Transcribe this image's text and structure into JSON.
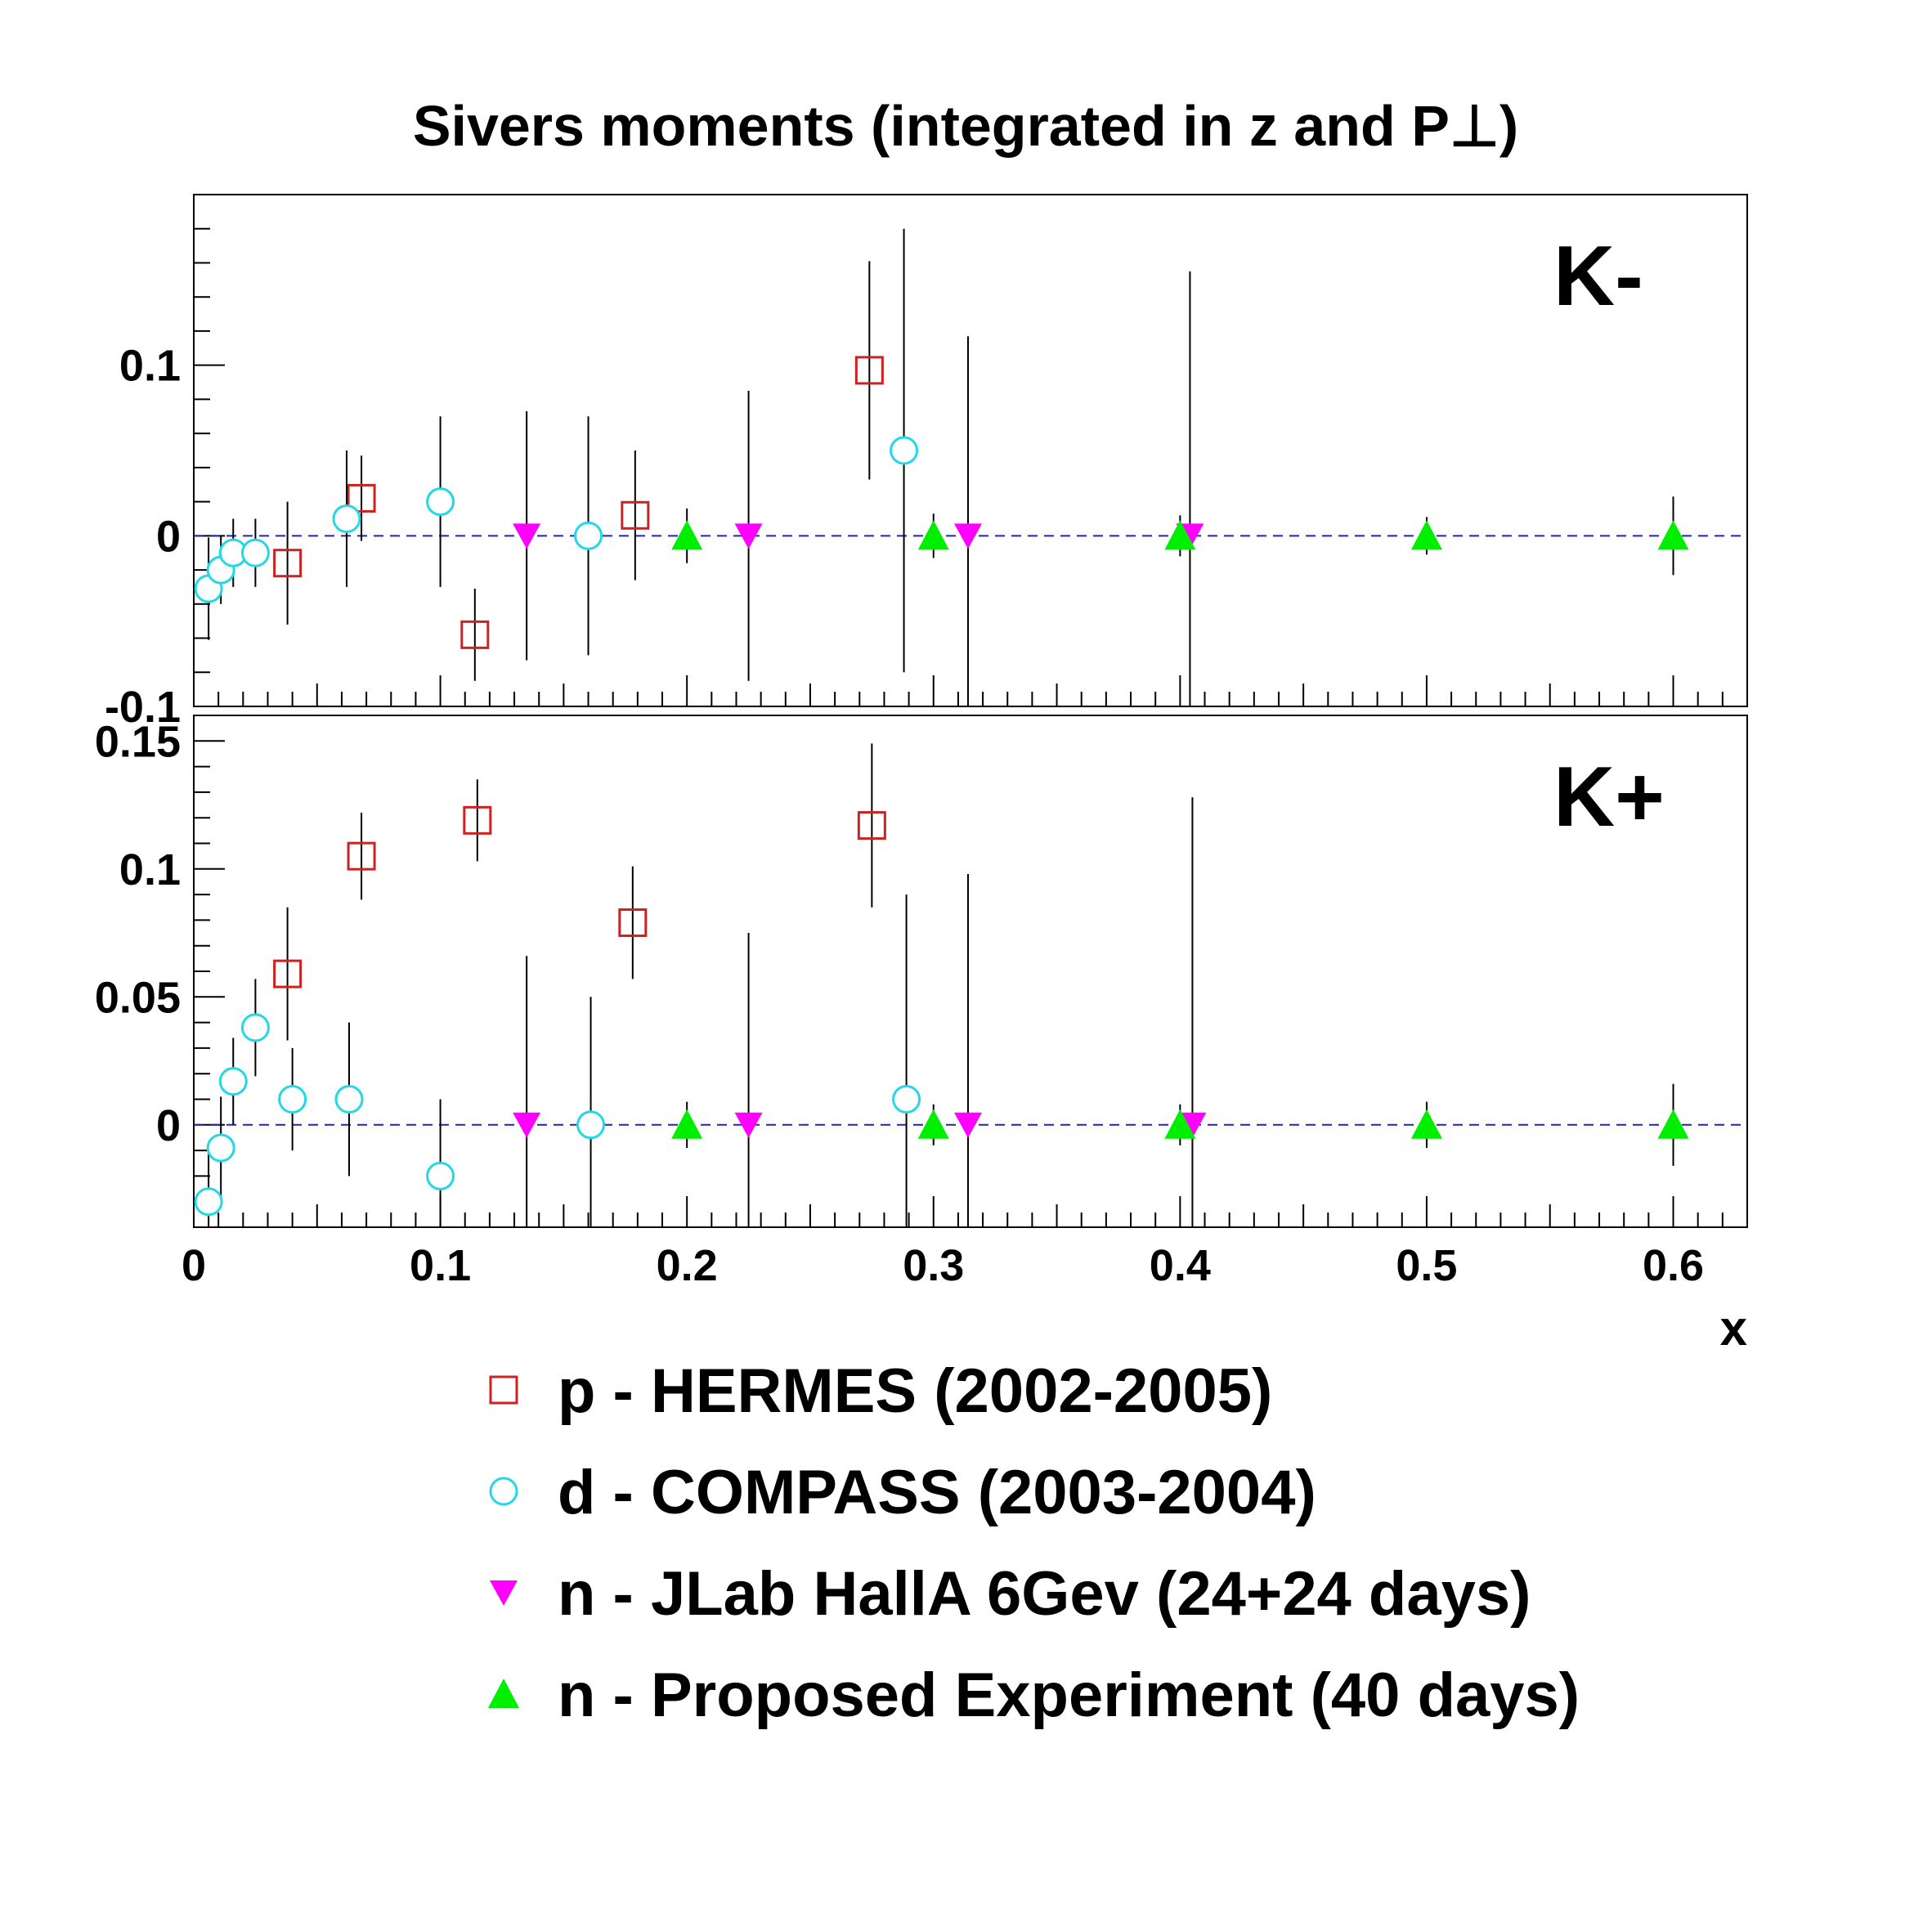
{
  "title": "Sivers moments (integrated in z and P⊥)",
  "chart_data": {
    "type": "scatter",
    "xlabel": "x",
    "xlim": [
      0,
      0.63
    ],
    "xticks": [
      "0",
      "0.1",
      "0.2",
      "0.3",
      "0.4",
      "0.5",
      "0.6"
    ],
    "legend_placement": "below",
    "series_styles": [
      {
        "name": "p - HERMES (2002-2005)",
        "marker": "open-square",
        "color": "#cc2222"
      },
      {
        "name": "d - COMPASS (2003-2004)",
        "marker": "open-circle",
        "color": "#22d8e6"
      },
      {
        "name": "n - JLab HallA 6Gev (24+24 days)",
        "marker": "filled-triangle-down",
        "color": "#ff00ff"
      },
      {
        "name": "n - Proposed Experiment (40 days)",
        "marker": "filled-triangle-up",
        "color": "#00ee00"
      }
    ],
    "panels": [
      {
        "label": "K-",
        "ylim": [
          -0.1,
          0.2
        ],
        "yticks": [
          "-0.1",
          "0",
          "0.1"
        ],
        "zero_line": true,
        "series": [
          {
            "name": "p - HERMES (2002-2005)",
            "points": [
              {
                "x": 0.038,
                "y": -0.016,
                "err": 0.036
              },
              {
                "x": 0.068,
                "y": 0.022,
                "err": 0.025
              },
              {
                "x": 0.114,
                "y": -0.058,
                "err": 0.027
              },
              {
                "x": 0.179,
                "y": 0.012,
                "err": 0.038
              },
              {
                "x": 0.274,
                "y": 0.097,
                "err": 0.064
              }
            ]
          },
          {
            "name": "d - COMPASS (2003-2004)",
            "points": [
              {
                "x": 0.006,
                "y": -0.031,
                "err": 0.03
              },
              {
                "x": 0.011,
                "y": -0.02,
                "err": 0.02
              },
              {
                "x": 0.016,
                "y": -0.01,
                "err": 0.02
              },
              {
                "x": 0.025,
                "y": -0.01,
                "err": 0.02
              },
              {
                "x": 0.062,
                "y": 0.01,
                "err": 0.04
              },
              {
                "x": 0.1,
                "y": 0.02,
                "err": 0.05
              },
              {
                "x": 0.16,
                "y": 0.0,
                "err": 0.07
              },
              {
                "x": 0.288,
                "y": 0.05,
                "err": 0.13
              }
            ]
          },
          {
            "name": "n - JLab HallA 6Gev (24+24 days)",
            "points": [
              {
                "x": 0.135,
                "y": 0.0,
                "err": 0.073
              },
              {
                "x": 0.225,
                "y": 0.0,
                "err": 0.085
              },
              {
                "x": 0.314,
                "y": 0.0,
                "err": 0.117
              },
              {
                "x": 0.404,
                "y": 0.0,
                "err": 0.155
              }
            ]
          },
          {
            "name": "n - Proposed Experiment (40 days)",
            "points": [
              {
                "x": 0.2,
                "y": 0.0,
                "err": 0.016
              },
              {
                "x": 0.3,
                "y": 0.0,
                "err": 0.013
              },
              {
                "x": 0.4,
                "y": 0.0,
                "err": 0.012
              },
              {
                "x": 0.5,
                "y": 0.0,
                "err": 0.011
              },
              {
                "x": 0.6,
                "y": 0.0,
                "err": 0.023
              }
            ]
          }
        ]
      },
      {
        "label": "K+",
        "ylim": [
          -0.04,
          0.16
        ],
        "yticks": [
          "0",
          "0.05",
          "0.1",
          "0.15"
        ],
        "zero_line": true,
        "series": [
          {
            "name": "p - HERMES (2002-2005)",
            "points": [
              {
                "x": 0.038,
                "y": 0.059,
                "err": 0.026
              },
              {
                "x": 0.068,
                "y": 0.105,
                "err": 0.017
              },
              {
                "x": 0.115,
                "y": 0.119,
                "err": 0.016
              },
              {
                "x": 0.178,
                "y": 0.079,
                "err": 0.022
              },
              {
                "x": 0.275,
                "y": 0.117,
                "err": 0.032
              }
            ]
          },
          {
            "name": "d - COMPASS (2003-2004)",
            "points": [
              {
                "x": 0.006,
                "y": -0.03,
                "err": 0.02
              },
              {
                "x": 0.011,
                "y": -0.009,
                "err": 0.02
              },
              {
                "x": 0.016,
                "y": 0.017,
                "err": 0.017
              },
              {
                "x": 0.025,
                "y": 0.038,
                "err": 0.019
              },
              {
                "x": 0.04,
                "y": 0.01,
                "err": 0.02
              },
              {
                "x": 0.063,
                "y": 0.01,
                "err": 0.03
              },
              {
                "x": 0.1,
                "y": -0.02,
                "err": 0.03
              },
              {
                "x": 0.161,
                "y": 0.0,
                "err": 0.05
              },
              {
                "x": 0.289,
                "y": 0.01,
                "err": 0.08
              }
            ]
          },
          {
            "name": "n - JLab HallA 6Gev (24+24 days)",
            "points": [
              {
                "x": 0.135,
                "y": 0.0,
                "err": 0.066
              },
              {
                "x": 0.225,
                "y": 0.0,
                "err": 0.075
              },
              {
                "x": 0.314,
                "y": 0.0,
                "err": 0.098
              },
              {
                "x": 0.405,
                "y": 0.0,
                "err": 0.128
              }
            ]
          },
          {
            "name": "n - Proposed Experiment (40 days)",
            "points": [
              {
                "x": 0.2,
                "y": 0.0,
                "err": 0.009
              },
              {
                "x": 0.3,
                "y": 0.0,
                "err": 0.008
              },
              {
                "x": 0.4,
                "y": 0.0,
                "err": 0.008
              },
              {
                "x": 0.5,
                "y": 0.0,
                "err": 0.009
              },
              {
                "x": 0.6,
                "y": 0.0,
                "err": 0.016
              }
            ]
          }
        ]
      }
    ]
  }
}
